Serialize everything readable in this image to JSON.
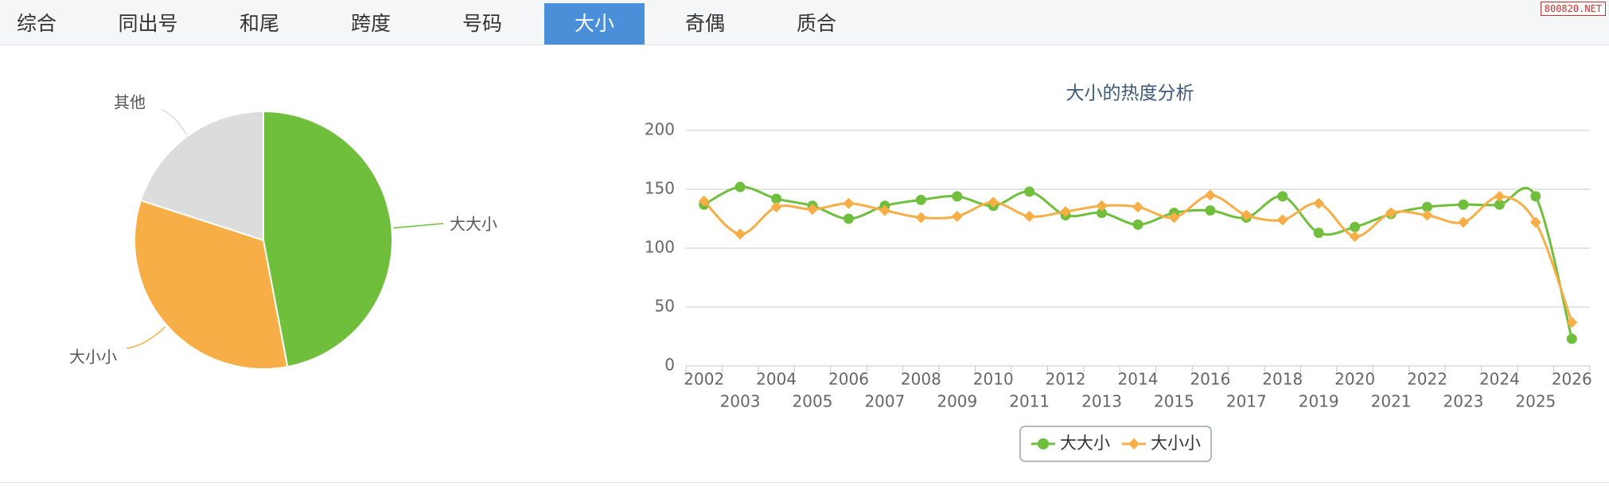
{
  "tabs": [
    {
      "label": "综合",
      "active": false
    },
    {
      "label": "同出号",
      "active": false
    },
    {
      "label": "和尾",
      "active": false
    },
    {
      "label": "跨度",
      "active": false
    },
    {
      "label": "号码",
      "active": false
    },
    {
      "label": "大小",
      "active": true
    },
    {
      "label": "奇偶",
      "active": false
    },
    {
      "label": "质合",
      "active": false
    }
  ],
  "watermark": "800820.NET",
  "colors": {
    "green": "#6fbf3c",
    "orange": "#f7ae47",
    "gray": "#dcdcdc",
    "active_tab": "#4a90d9"
  },
  "chart_data": [
    {
      "type": "pie",
      "slices": [
        {
          "label": "大大小",
          "value": 47,
          "color": "#6fbf3c"
        },
        {
          "label": "大小小",
          "value": 33,
          "color": "#f7ae47"
        },
        {
          "label": "其他",
          "value": 20,
          "color": "#dcdcdc"
        }
      ]
    },
    {
      "type": "line",
      "title": "大小的热度分析",
      "x": [
        "2002",
        "2003",
        "2004",
        "2005",
        "2006",
        "2007",
        "2008",
        "2009",
        "2010",
        "2011",
        "2012",
        "2013",
        "2014",
        "2015",
        "2016",
        "2017",
        "2018",
        "2019",
        "2020",
        "2021",
        "2022",
        "2023",
        "2024",
        "2025",
        "2026"
      ],
      "ylim": [
        0,
        200
      ],
      "yticks": [
        0,
        50,
        100,
        150,
        200
      ],
      "series": [
        {
          "name": "大大小",
          "color": "#6fbf3c",
          "marker": "circle",
          "values": [
            137,
            152,
            142,
            136,
            125,
            136,
            141,
            144,
            136,
            148,
            128,
            130,
            120,
            130,
            132,
            126,
            144,
            113,
            118,
            129,
            135,
            137,
            137,
            144,
            23
          ]
        },
        {
          "name": "大小小",
          "color": "#f7ae47",
          "marker": "diamond",
          "values": [
            140,
            112,
            135,
            133,
            138,
            132,
            126,
            127,
            139,
            127,
            131,
            136,
            135,
            126,
            145,
            128,
            124,
            138,
            110,
            130,
            128,
            122,
            144,
            122,
            37
          ]
        }
      ],
      "legend": "bottom-center",
      "grid": true
    }
  ]
}
